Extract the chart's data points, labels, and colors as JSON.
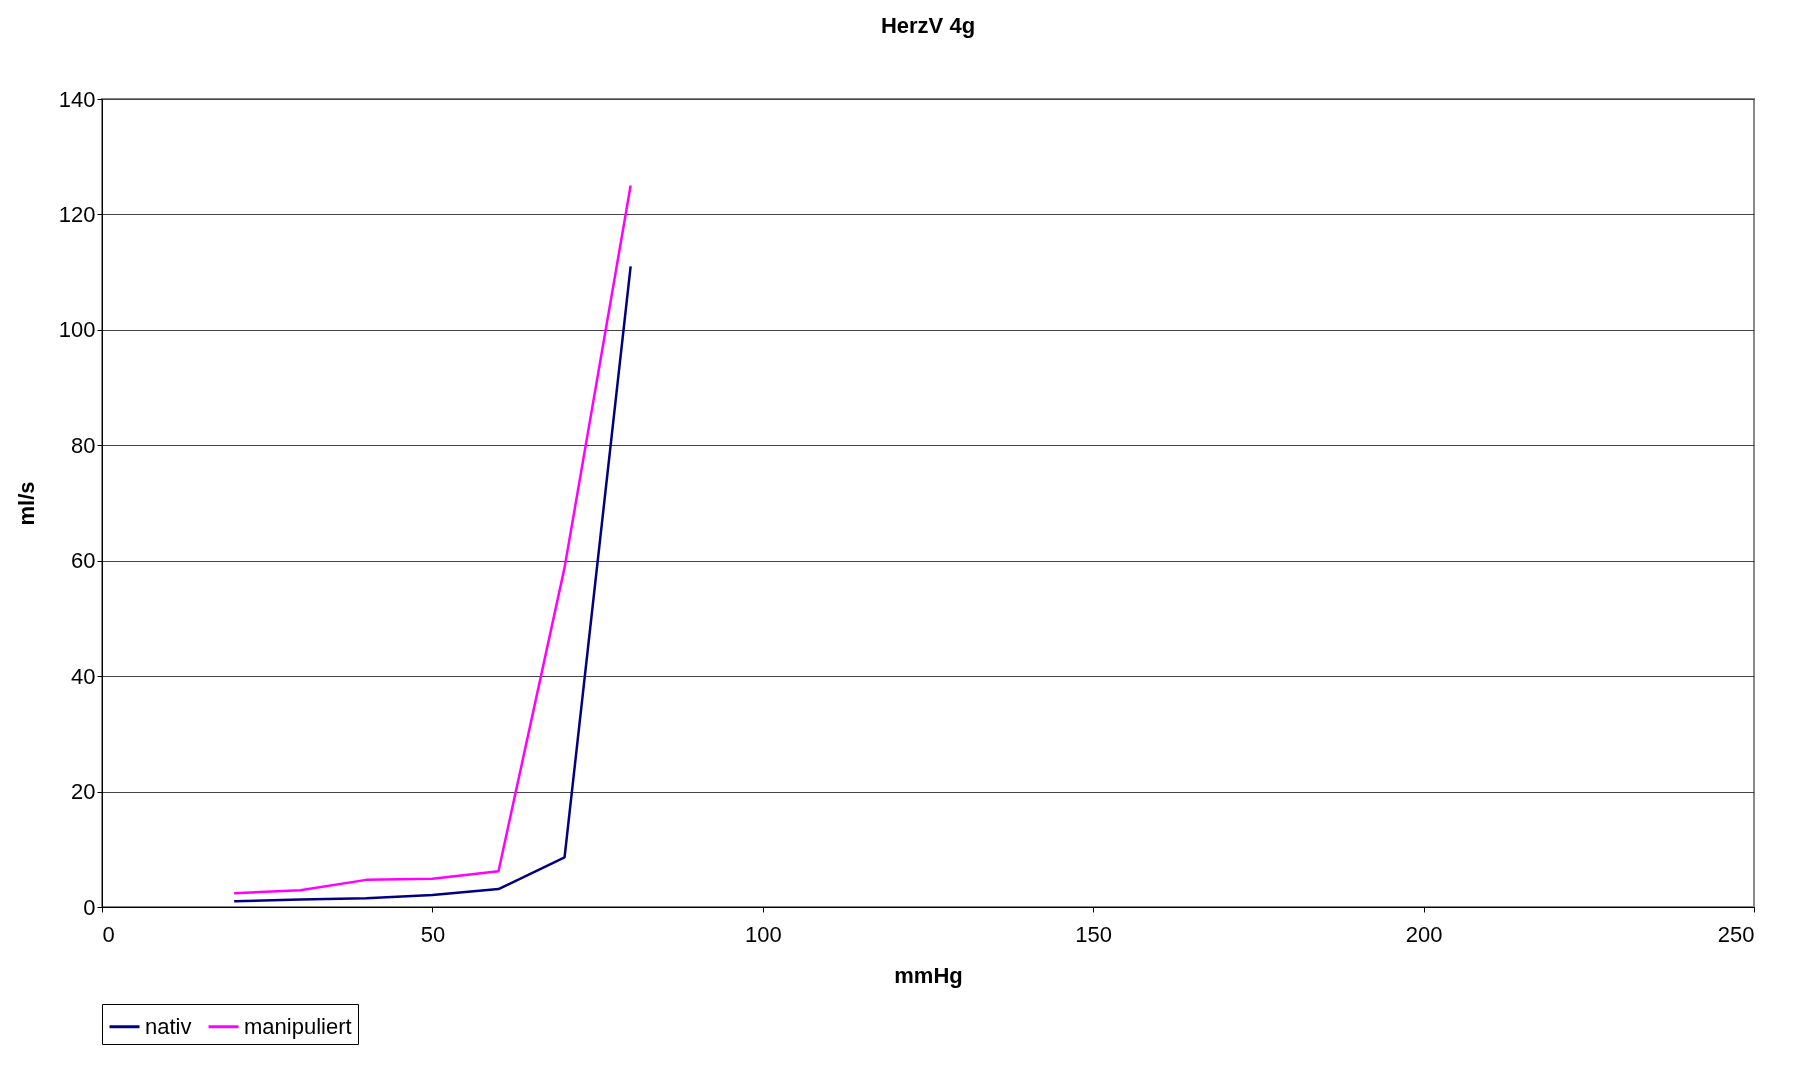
{
  "chart_data": {
    "type": "line",
    "title": "HerzV 4g",
    "xlabel": "mmHg",
    "ylabel": "ml/s",
    "x": [
      20,
      30,
      40,
      50,
      60,
      70,
      80
    ],
    "series": [
      {
        "name": "nativ",
        "color": "#000080",
        "values": [
          1.0,
          1.3,
          1.5,
          2.1,
          3.1,
          8.6,
          111
        ]
      },
      {
        "name": "manipuliert",
        "color": "#ff00ff",
        "values": [
          2.4,
          2.9,
          4.7,
          4.9,
          6.2,
          58.8,
          125
        ]
      }
    ],
    "xlim": [
      0,
      250
    ],
    "xticks": [
      0,
      50,
      100,
      150,
      200,
      250
    ],
    "ylim": [
      0,
      140
    ],
    "yticks": [
      0,
      20,
      40,
      60,
      80,
      100,
      120,
      140
    ],
    "grid": "y",
    "legend": "bottom",
    "marker": "none",
    "line_style": "solid"
  }
}
